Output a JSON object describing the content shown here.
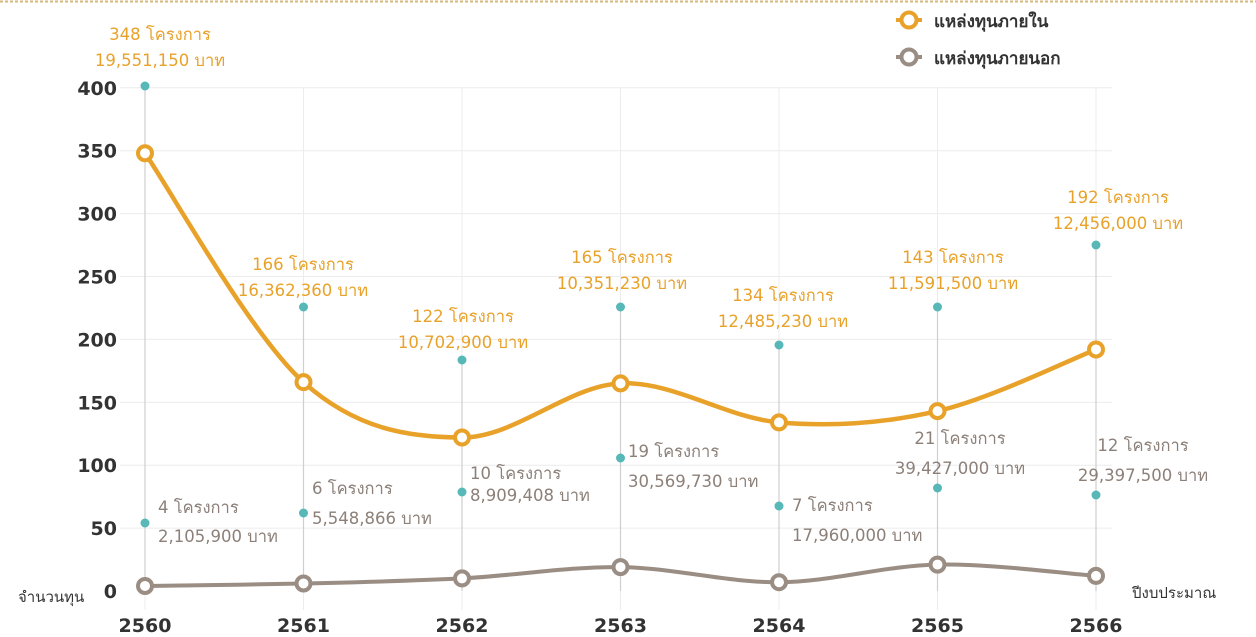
{
  "chart_data": {
    "type": "line",
    "x": [
      "2560",
      "2561",
      "2562",
      "2563",
      "2564",
      "2565",
      "2566"
    ],
    "xlabel": "ปีงบประมาณ",
    "ylabel": "จำนวนทุน",
    "ylim": [
      0,
      400
    ],
    "yticks": [
      0,
      50,
      100,
      150,
      200,
      250,
      300,
      350,
      400
    ],
    "grid": true,
    "legend_position": "top-right",
    "series": [
      {
        "name": "แหล่งทุนภายใน",
        "color": "#e8a22a",
        "values": [
          348,
          166,
          122,
          165,
          134,
          143,
          192
        ],
        "label_projects": [
          "348 โครงการ",
          "166 โครงการ",
          "122 โครงการ",
          "165 โครงการ",
          "134 โครงการ",
          "143 โครงการ",
          "192 โครงการ"
        ],
        "label_amounts": [
          "19,551,150 บาท",
          "16,362,360 บาท",
          "10,702,900 บาท",
          "10,351,230 บาท",
          "12,485,230 บาท",
          "11,591,500 บาท",
          "12,456,000 บาท"
        ]
      },
      {
        "name": "แหล่งทุนภายนอก",
        "color": "#9a8d84",
        "values": [
          4,
          6,
          10,
          19,
          7,
          21,
          12
        ],
        "label_projects": [
          "4 โครงการ",
          "6 โครงการ",
          "10 โครงการ",
          "19 โครงการ",
          "7 โครงการ",
          "21 โครงการ",
          "12 โครงการ"
        ],
        "label_amounts": [
          "2,105,900 บาท",
          "5,548,866 บาท",
          "8,909,408 บาท",
          "30,569,730 บาท",
          "17,960,000 บาท",
          "39,427,000 บาท",
          "29,397,500 บาท"
        ]
      }
    ],
    "callout_dot_color": "#58b8b8"
  }
}
